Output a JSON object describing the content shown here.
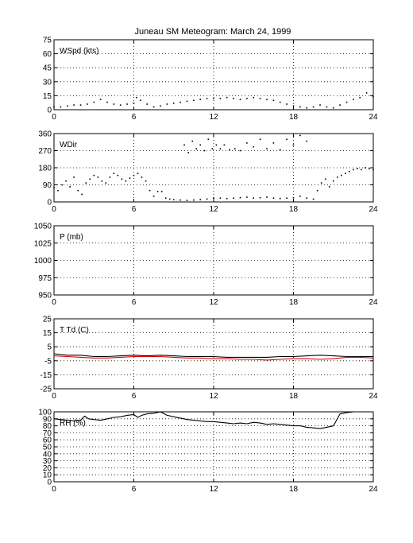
{
  "title": "Juneau SM Meteogram:      March 24, 1999",
  "chart_data": [
    {
      "type": "scatter",
      "label": "WSpd (kts)",
      "xlim": [
        0,
        24
      ],
      "ylim": [
        0,
        75
      ],
      "xticks": [
        0,
        6,
        12,
        18,
        24
      ],
      "yticks": [
        0,
        15,
        30,
        45,
        60,
        75
      ],
      "grid": true,
      "series": [
        {
          "color": "#000000",
          "points": [
            [
              0,
              3
            ],
            [
              0.5,
              3
            ],
            [
              1,
              4
            ],
            [
              1.5,
              5
            ],
            [
              2,
              5
            ],
            [
              2.5,
              6
            ],
            [
              3,
              8
            ],
            [
              3.5,
              11
            ],
            [
              4,
              8
            ],
            [
              4.5,
              6
            ],
            [
              5,
              5
            ],
            [
              5.5,
              6
            ],
            [
              6,
              7
            ],
            [
              6.2,
              13
            ],
            [
              6.5,
              10
            ],
            [
              7,
              6
            ],
            [
              7.5,
              3
            ],
            [
              8,
              4
            ],
            [
              8.5,
              6
            ],
            [
              9,
              7
            ],
            [
              9.5,
              8
            ],
            [
              10,
              9
            ],
            [
              10.5,
              10
            ],
            [
              11,
              11
            ],
            [
              11.5,
              12
            ],
            [
              12,
              12
            ],
            [
              12.5,
              12
            ],
            [
              13,
              13
            ],
            [
              13.5,
              12
            ],
            [
              14,
              11
            ],
            [
              14.5,
              12
            ],
            [
              15,
              13
            ],
            [
              15.5,
              12
            ],
            [
              16,
              11
            ],
            [
              16.5,
              10
            ],
            [
              17,
              8
            ],
            [
              17.5,
              6
            ],
            [
              18,
              4
            ],
            [
              18.5,
              3
            ],
            [
              19,
              2
            ],
            [
              19.5,
              3
            ],
            [
              20,
              5
            ],
            [
              20.5,
              3
            ],
            [
              21,
              2
            ],
            [
              21.5,
              5
            ],
            [
              22,
              8
            ],
            [
              22.5,
              11
            ],
            [
              23,
              13
            ],
            [
              23.5,
              18
            ],
            [
              24,
              14
            ]
          ]
        }
      ]
    },
    {
      "type": "scatter",
      "label": "WDir",
      "xlim": [
        0,
        24
      ],
      "ylim": [
        0,
        360
      ],
      "xticks": [
        0,
        6,
        12,
        18,
        24
      ],
      "yticks": [
        0,
        90,
        180,
        270,
        360
      ],
      "grid": true,
      "series": [
        {
          "color": "#000000",
          "points": [
            [
              0,
              75
            ],
            [
              0.3,
              60
            ],
            [
              0.6,
              90
            ],
            [
              0.9,
              110
            ],
            [
              1.2,
              80
            ],
            [
              1.5,
              130
            ],
            [
              1.8,
              60
            ],
            [
              2.1,
              40
            ],
            [
              2.4,
              100
            ],
            [
              2.7,
              120
            ],
            [
              3,
              140
            ],
            [
              3.3,
              130
            ],
            [
              3.6,
              110
            ],
            [
              3.9,
              100
            ],
            [
              4.2,
              130
            ],
            [
              4.5,
              150
            ],
            [
              4.8,
              140
            ],
            [
              5.1,
              120
            ],
            [
              5.4,
              110
            ],
            [
              5.7,
              125
            ],
            [
              6,
              140
            ],
            [
              6.3,
              150
            ],
            [
              6.6,
              130
            ],
            [
              6.9,
              110
            ],
            [
              7.2,
              60
            ],
            [
              7.5,
              30
            ],
            [
              7.8,
              55
            ],
            [
              8.1,
              55
            ],
            [
              8.4,
              20
            ],
            [
              8.7,
              15
            ],
            [
              9,
              12
            ],
            [
              9.5,
              10
            ],
            [
              10,
              8
            ],
            [
              10.5,
              10
            ],
            [
              11,
              12
            ],
            [
              11.5,
              15
            ],
            [
              12,
              20
            ],
            [
              12.5,
              20
            ],
            [
              13,
              18
            ],
            [
              13.5,
              20
            ],
            [
              14,
              22
            ],
            [
              14.5,
              25
            ],
            [
              15,
              20
            ],
            [
              15.5,
              22
            ],
            [
              16,
              25
            ],
            [
              16.5,
              20
            ],
            [
              17,
              18
            ],
            [
              17.5,
              20
            ],
            [
              18,
              22
            ],
            [
              18.5,
              30
            ],
            [
              19,
              20
            ],
            [
              19.5,
              15
            ],
            [
              19.8,
              60
            ],
            [
              20.1,
              100
            ],
            [
              20.4,
              120
            ],
            [
              20.7,
              80
            ],
            [
              21,
              110
            ],
            [
              21.3,
              130
            ],
            [
              21.6,
              140
            ],
            [
              21.9,
              150
            ],
            [
              22.2,
              160
            ],
            [
              22.5,
              170
            ],
            [
              22.8,
              175
            ],
            [
              23.1,
              170
            ],
            [
              23.4,
              180
            ],
            [
              23.7,
              175
            ],
            [
              24,
              170
            ],
            [
              9.8,
              300
            ],
            [
              10.1,
              260
            ],
            [
              10.4,
              320
            ],
            [
              10.7,
              280
            ],
            [
              11,
              300
            ],
            [
              11.3,
              270
            ],
            [
              11.6,
              330
            ],
            [
              11.9,
              280
            ],
            [
              12.2,
              300
            ],
            [
              12.5,
              280
            ],
            [
              12.8,
              300
            ],
            [
              13.2,
              275
            ],
            [
              13.6,
              280
            ],
            [
              14,
              270
            ],
            [
              14.5,
              310
            ],
            [
              15,
              290
            ],
            [
              15.5,
              330
            ],
            [
              16,
              280
            ],
            [
              16.5,
              310
            ],
            [
              17,
              275
            ],
            [
              17.5,
              330
            ],
            [
              18,
              300
            ],
            [
              18.5,
              350
            ],
            [
              19,
              320
            ]
          ]
        }
      ]
    },
    {
      "type": "scatter",
      "label": "P (mb)",
      "xlim": [
        0,
        24
      ],
      "ylim": [
        950,
        1050
      ],
      "xticks": [
        0,
        6,
        12,
        18,
        24
      ],
      "yticks": [
        950,
        975,
        1000,
        1025,
        1050
      ],
      "grid": true,
      "series": []
    },
    {
      "type": "line",
      "label": "T Td (C)",
      "xlim": [
        0,
        24
      ],
      "ylim": [
        -25,
        25
      ],
      "xticks": [
        0,
        6,
        12,
        18,
        24
      ],
      "yticks": [
        -25,
        -15,
        -5,
        5,
        15,
        25
      ],
      "grid": true,
      "series": [
        {
          "color": "#000000",
          "points": [
            [
              0,
              0
            ],
            [
              1,
              -1
            ],
            [
              2,
              -1
            ],
            [
              3,
              -2
            ],
            [
              4,
              -2
            ],
            [
              5,
              -1.5
            ],
            [
              6,
              -1
            ],
            [
              7,
              -1.5
            ],
            [
              8,
              -1
            ],
            [
              9,
              -1.5
            ],
            [
              10,
              -2
            ],
            [
              11,
              -2
            ],
            [
              12,
              -2
            ],
            [
              13,
              -2.5
            ],
            [
              14,
              -2.5
            ],
            [
              15,
              -2.5
            ],
            [
              16,
              -2.5
            ],
            [
              17,
              -2
            ],
            [
              18,
              -2
            ],
            [
              19,
              -1.5
            ],
            [
              20,
              -1
            ],
            [
              21,
              -1.5
            ],
            [
              22,
              -2
            ],
            [
              23,
              -2
            ],
            [
              24,
              -2
            ]
          ]
        },
        {
          "color": "#e00000",
          "points": [
            [
              0,
              -1.5
            ],
            [
              1,
              -2
            ],
            [
              2,
              -2.5
            ],
            [
              3,
              -3
            ],
            [
              4,
              -3
            ],
            [
              5,
              -2.5
            ],
            [
              6,
              -2
            ],
            [
              7,
              -2
            ],
            [
              8,
              -2
            ],
            [
              9,
              -2.5
            ],
            [
              10,
              -3
            ],
            [
              11,
              -3
            ],
            [
              12,
              -3.5
            ],
            [
              13,
              -3.5
            ],
            [
              14,
              -4
            ],
            [
              15,
              -4
            ],
            [
              16,
              -4.5
            ],
            [
              17,
              -4
            ],
            [
              18,
              -3.5
            ],
            [
              19,
              -3.5
            ],
            [
              20,
              -4
            ],
            [
              21,
              -3.5
            ],
            [
              22,
              -2.5
            ],
            [
              23,
              -2.5
            ],
            [
              24,
              -3
            ]
          ]
        }
      ]
    },
    {
      "type": "line",
      "label": "RH (%)",
      "xlim": [
        0,
        24
      ],
      "ylim": [
        0,
        100
      ],
      "xticks": [
        0,
        6,
        12,
        18,
        24
      ],
      "yticks": [
        0,
        10,
        20,
        30,
        40,
        50,
        60,
        70,
        80,
        90,
        100
      ],
      "grid": true,
      "series": [
        {
          "color": "#000000",
          "points": [
            [
              0,
              90
            ],
            [
              0.5,
              89
            ],
            [
              1,
              88
            ],
            [
              1.5,
              87
            ],
            [
              2,
              88
            ],
            [
              2.3,
              94
            ],
            [
              2.6,
              90
            ],
            [
              3,
              89
            ],
            [
              3.5,
              88
            ],
            [
              4,
              90
            ],
            [
              4.5,
              92
            ],
            [
              5,
              93
            ],
            [
              5.5,
              95
            ],
            [
              6,
              96
            ],
            [
              6.3,
              92
            ],
            [
              6.6,
              95
            ],
            [
              7,
              97
            ],
            [
              7.5,
              98
            ],
            [
              8,
              100
            ],
            [
              8.5,
              95
            ],
            [
              9,
              93
            ],
            [
              9.5,
              91
            ],
            [
              10,
              89
            ],
            [
              10.5,
              88
            ],
            [
              11,
              87
            ],
            [
              11.5,
              86
            ],
            [
              12,
              86
            ],
            [
              12.5,
              85
            ],
            [
              13,
              84
            ],
            [
              13.5,
              83
            ],
            [
              14,
              84
            ],
            [
              14.5,
              83
            ],
            [
              15,
              85
            ],
            [
              15.5,
              84
            ],
            [
              16,
              82
            ],
            [
              16.5,
              83
            ],
            [
              17,
              82
            ],
            [
              17.5,
              81
            ],
            [
              18,
              80
            ],
            [
              18.5,
              80
            ],
            [
              19,
              78
            ],
            [
              19.5,
              77
            ],
            [
              20,
              76
            ],
            [
              20.5,
              78
            ],
            [
              21,
              80
            ],
            [
              21.5,
              97
            ],
            [
              22,
              99
            ],
            [
              22.5,
              100
            ],
            [
              23,
              100
            ],
            [
              23.5,
              100
            ],
            [
              24,
              100
            ]
          ]
        }
      ]
    }
  ]
}
